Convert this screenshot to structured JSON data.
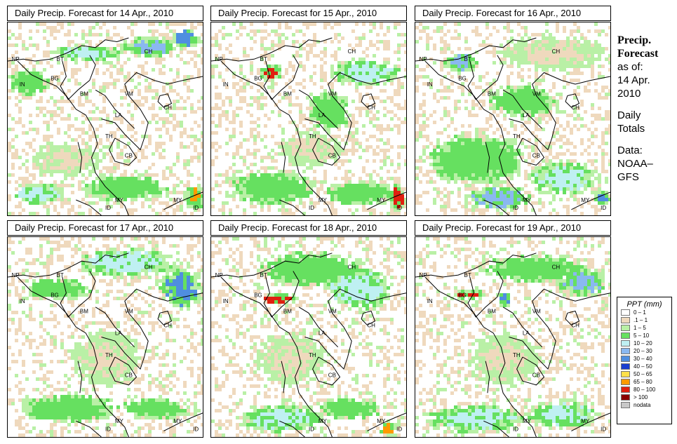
{
  "panels": [
    {
      "title": "Daily Precip. Forecast for  14 Apr., 2010"
    },
    {
      "title": "Daily Precip. Forecast for  15 Apr., 2010"
    },
    {
      "title": "Daily Precip. Forecast for  16 Apr., 2010"
    },
    {
      "title": "Daily Precip. Forecast for  17 Apr., 2010"
    },
    {
      "title": "Daily Precip. Forecast for  18 Apr., 2010"
    },
    {
      "title": "Daily Precip. Forecast for  19 Apr., 2010"
    }
  ],
  "country_labels": [
    "NP",
    "BT",
    "IN",
    "BG",
    "BM",
    "CH",
    "VM",
    "LA",
    "TH",
    "CB",
    "CH",
    "MY",
    "ID",
    "MY",
    "ID"
  ],
  "sidebar": {
    "heading1": "Precip.",
    "heading2": "Forecast",
    "line1": "as of:",
    "line2": "14 Apr.",
    "line3": "2010",
    "line4": "Daily",
    "line5": "Totals",
    "line6": "Data:",
    "line7": "NOAA–",
    "line8": "GFS"
  },
  "legend": {
    "title": "PPT (mm)",
    "items": [
      {
        "label": "0 – 1",
        "color": "#ffffff"
      },
      {
        "label": ".1 – 1",
        "color": "#efd9bd"
      },
      {
        "label": "1 – 5",
        "color": "#b9f0a6"
      },
      {
        "label": "5 – 10",
        "color": "#66e060"
      },
      {
        "label": "10 – 20",
        "color": "#bff0f2"
      },
      {
        "label": "20 – 30",
        "color": "#8ab8f0"
      },
      {
        "label": "30 – 40",
        "color": "#4f8ee0"
      },
      {
        "label": "40 – 50",
        "color": "#1a3ed0"
      },
      {
        "label": "50 – 65",
        "color": "#ffe04a"
      },
      {
        "label": "65 – 80",
        "color": "#ff9a00"
      },
      {
        "label": "80 – 100",
        "color": "#e02010"
      },
      {
        "label": "> 100",
        "color": "#8a0000"
      },
      {
        "label": "nodata",
        "color": "#c8c8c8"
      }
    ]
  },
  "precip_fields": [
    {
      "blobs": [
        [
          0.72,
          0.12,
          0.16,
          0.06,
          5
        ],
        [
          0.9,
          0.08,
          0.08,
          0.06,
          6
        ],
        [
          0.4,
          0.15,
          0.2,
          0.05,
          4
        ],
        [
          0.1,
          0.3,
          0.12,
          0.08,
          3
        ],
        [
          0.15,
          0.88,
          0.15,
          0.06,
          4
        ],
        [
          0.95,
          0.9,
          0.06,
          0.08,
          9
        ],
        [
          0.6,
          0.85,
          0.25,
          0.08,
          3
        ],
        [
          0.3,
          0.7,
          0.2,
          0.1,
          1
        ]
      ]
    },
    {
      "blobs": [
        [
          0.3,
          0.25,
          0.07,
          0.05,
          10
        ],
        [
          0.78,
          0.25,
          0.2,
          0.08,
          4
        ],
        [
          0.3,
          0.85,
          0.25,
          0.1,
          3
        ],
        [
          0.75,
          0.88,
          0.2,
          0.07,
          3
        ],
        [
          0.95,
          0.9,
          0.05,
          0.08,
          10
        ],
        [
          0.5,
          0.65,
          0.2,
          0.1,
          1
        ],
        [
          0.6,
          0.45,
          0.12,
          0.12,
          3
        ]
      ]
    },
    {
      "blobs": [
        [
          0.23,
          0.2,
          0.1,
          0.06,
          5
        ],
        [
          0.55,
          0.4,
          0.2,
          0.1,
          3
        ],
        [
          0.3,
          0.7,
          0.3,
          0.15,
          3
        ],
        [
          0.75,
          0.8,
          0.2,
          0.1,
          4
        ],
        [
          0.42,
          0.9,
          0.2,
          0.07,
          5
        ],
        [
          0.7,
          0.15,
          0.3,
          0.1,
          1
        ],
        [
          0.95,
          0.9,
          0.05,
          0.05,
          6
        ]
      ]
    },
    {
      "blobs": [
        [
          0.88,
          0.25,
          0.12,
          0.12,
          6
        ],
        [
          0.6,
          0.12,
          0.3,
          0.08,
          4
        ],
        [
          0.25,
          0.25,
          0.2,
          0.06,
          3
        ],
        [
          0.3,
          0.85,
          0.3,
          0.08,
          3
        ],
        [
          0.75,
          0.85,
          0.2,
          0.06,
          3
        ],
        [
          0.5,
          0.6,
          0.2,
          0.15,
          1
        ]
      ]
    },
    {
      "blobs": [
        [
          0.33,
          0.3,
          0.12,
          0.03,
          10
        ],
        [
          0.75,
          0.25,
          0.2,
          0.12,
          4
        ],
        [
          0.5,
          0.15,
          0.3,
          0.1,
          3
        ],
        [
          0.35,
          0.9,
          0.25,
          0.08,
          4
        ],
        [
          0.7,
          0.85,
          0.2,
          0.06,
          3
        ],
        [
          0.9,
          0.95,
          0.05,
          0.04,
          9
        ],
        [
          0.4,
          0.6,
          0.2,
          0.15,
          1
        ]
      ]
    },
    {
      "blobs": [
        [
          0.28,
          0.28,
          0.1,
          0.03,
          10
        ],
        [
          0.45,
          0.3,
          0.05,
          0.04,
          6
        ],
        [
          0.85,
          0.22,
          0.15,
          0.08,
          5
        ],
        [
          0.6,
          0.15,
          0.3,
          0.08,
          3
        ],
        [
          0.3,
          0.9,
          0.3,
          0.08,
          4
        ],
        [
          0.75,
          0.88,
          0.2,
          0.08,
          4
        ],
        [
          0.45,
          0.6,
          0.2,
          0.15,
          1
        ]
      ]
    }
  ]
}
